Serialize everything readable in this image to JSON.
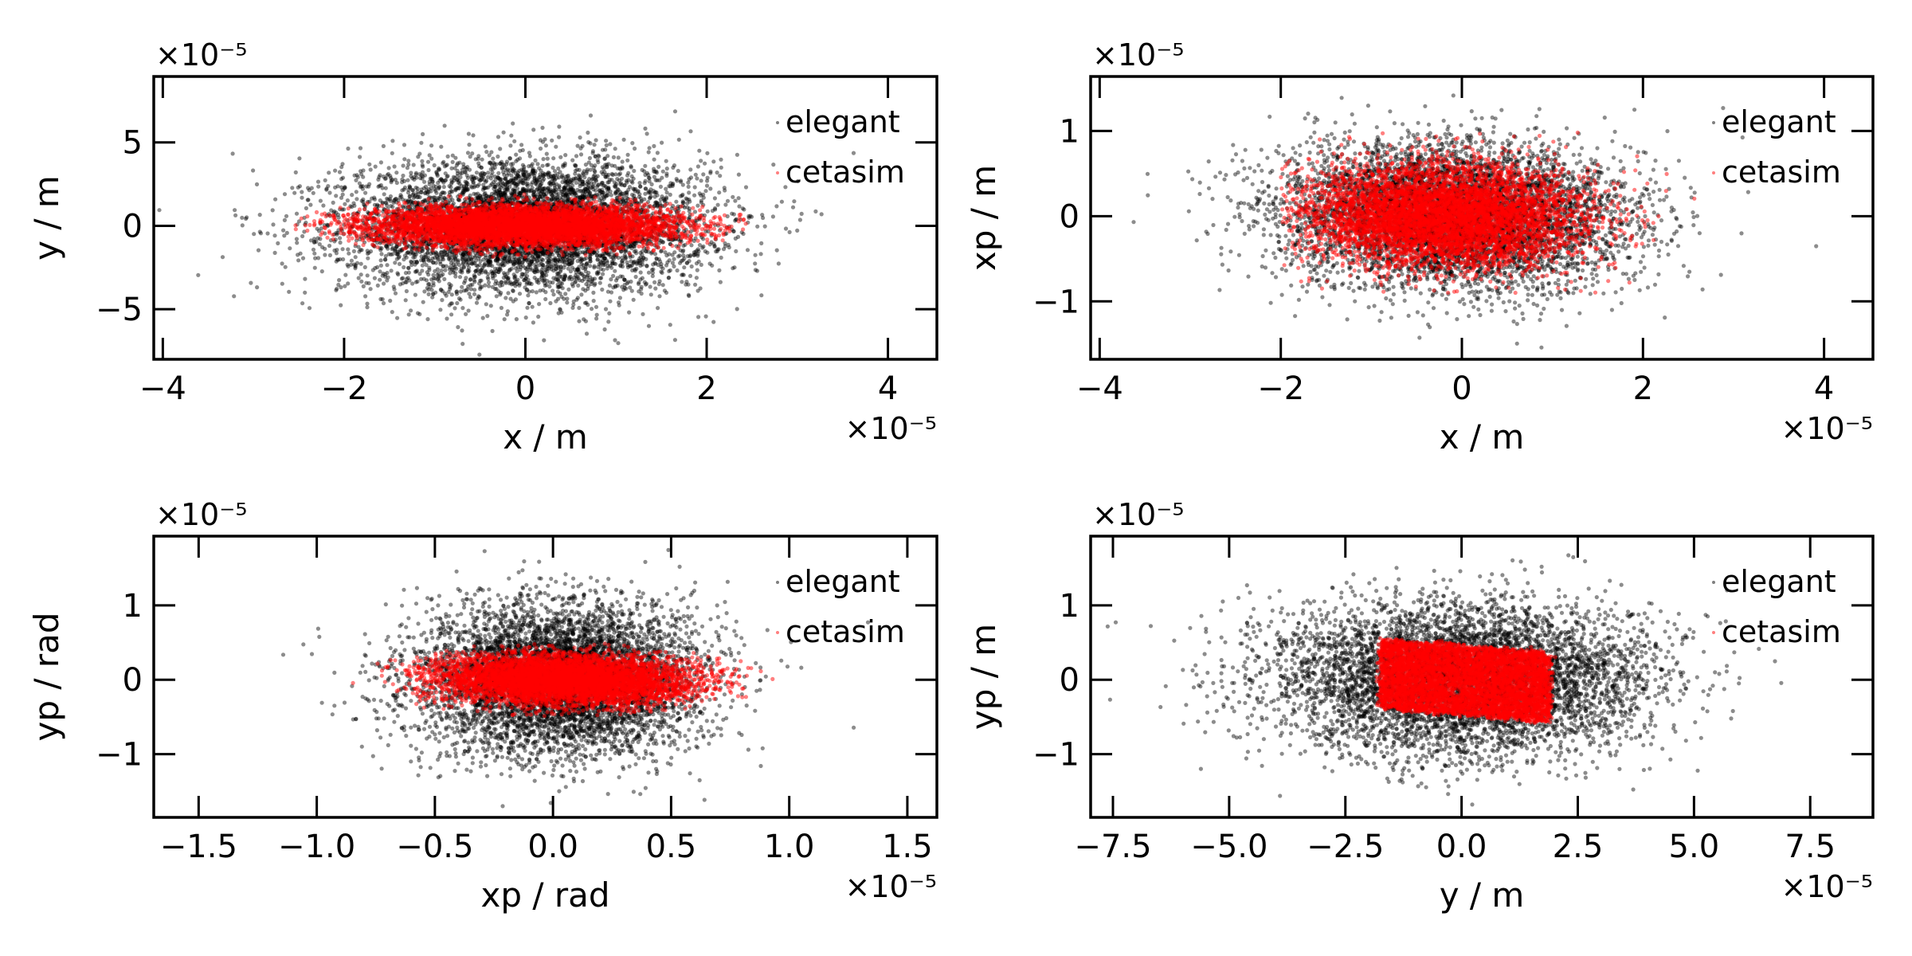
{
  "chart_data": [
    {
      "type": "scatter",
      "title": "",
      "xlabel": "x / m",
      "ylabel": "y / m",
      "x_offset_text": "×10⁻⁵",
      "y_offset_text": "×10⁻⁵",
      "scale": 1e-05,
      "xlim": [
        -4.1,
        4.54
      ],
      "ylim": [
        -8.0,
        8.95
      ],
      "xticks": [
        -4,
        -2,
        0,
        2,
        4
      ],
      "xtick_labels": [
        "−4",
        "−2",
        "0",
        "2",
        "4"
      ],
      "yticks": [
        -5,
        0,
        5
      ],
      "ytick_labels": [
        "−5",
        "0",
        "5"
      ],
      "grid": false,
      "tick_direction": "in",
      "legend": {
        "placement": "top-right",
        "entries": [
          "elegant",
          "cetasim"
        ],
        "frame": false
      },
      "series": [
        {
          "name": "elegant",
          "color": "#000000",
          "alpha": 0.45,
          "distribution": "gaussian",
          "n_points_approx": 6000,
          "mean": [
            0,
            0
          ],
          "sigma": [
            1.0,
            2.0
          ],
          "correlation": 0.0
        },
        {
          "name": "cetasim",
          "color": "#ff0000",
          "alpha": 0.5,
          "distribution": "gaussian-truncated",
          "n_points_approx": 6000,
          "mean": [
            0,
            0
          ],
          "sigma": [
            0.85,
            0.6
          ],
          "correlation": 0.0,
          "extent_x": [
            -2.5,
            2.6
          ],
          "extent_y": [
            -1.9,
            1.9
          ]
        }
      ]
    },
    {
      "type": "scatter",
      "title": "",
      "xlabel": "x / m",
      "ylabel": "xp / m",
      "x_offset_text": "×10⁻⁵",
      "y_offset_text": "×10⁻⁵",
      "scale": 1e-05,
      "xlim": [
        -4.1,
        4.54
      ],
      "ylim": [
        -1.68,
        1.64
      ],
      "xticks": [
        -4,
        -2,
        0,
        2,
        4
      ],
      "xtick_labels": [
        "−4",
        "−2",
        "0",
        "2",
        "4"
      ],
      "yticks": [
        -1,
        0,
        1
      ],
      "ytick_labels": [
        "−1",
        "0",
        "1"
      ],
      "grid": false,
      "tick_direction": "in",
      "legend": {
        "placement": "top-right",
        "entries": [
          "elegant",
          "cetasim"
        ],
        "frame": false
      },
      "series": [
        {
          "name": "elegant",
          "color": "#000000",
          "alpha": 0.45,
          "distribution": "gaussian",
          "n_points_approx": 6000,
          "mean": [
            -0.1,
            0
          ],
          "sigma": [
            0.95,
            0.42
          ],
          "correlation": -0.05
        },
        {
          "name": "cetasim",
          "color": "#ff0000",
          "alpha": 0.5,
          "distribution": "gaussian",
          "n_points_approx": 6000,
          "mean": [
            -0.2,
            0
          ],
          "sigma": [
            0.75,
            0.3
          ],
          "correlation": -0.05,
          "extent_x": [
            -2.0,
            2.8
          ],
          "extent_y": [
            -0.9,
            1.0
          ]
        }
      ]
    },
    {
      "type": "scatter",
      "title": "",
      "xlabel": "xp / rad",
      "ylabel": "yp / rad",
      "x_offset_text": "×10⁻⁵",
      "y_offset_text": "×10⁻⁵",
      "scale": 1e-05,
      "xlim": [
        -1.69,
        1.625
      ],
      "ylim": [
        -1.85,
        1.93
      ],
      "xticks": [
        -1.5,
        -1.0,
        -0.5,
        0.0,
        0.5,
        1.0,
        1.5
      ],
      "xtick_labels": [
        "−1.5",
        "−1.0",
        "−0.5",
        "0.0",
        "0.5",
        "1.0",
        "1.5"
      ],
      "yticks": [
        -1,
        0,
        1
      ],
      "ytick_labels": [
        "−1",
        "0",
        "1"
      ],
      "grid": false,
      "tick_direction": "in",
      "legend": {
        "placement": "top-right",
        "entries": [
          "elegant",
          "cetasim"
        ],
        "frame": false
      },
      "series": [
        {
          "name": "elegant",
          "color": "#000000",
          "alpha": 0.45,
          "distribution": "gaussian",
          "n_points_approx": 6000,
          "mean": [
            0.03,
            0
          ],
          "sigma": [
            0.3,
            0.5
          ],
          "correlation": 0.0
        },
        {
          "name": "cetasim",
          "color": "#ff0000",
          "alpha": 0.5,
          "distribution": "gaussian-truncated",
          "n_points_approx": 6000,
          "mean": [
            0.05,
            0
          ],
          "sigma": [
            0.27,
            0.17
          ],
          "correlation": -0.1,
          "extent_x": [
            -0.85,
            0.95
          ],
          "extent_y": [
            -0.5,
            0.5
          ]
        }
      ]
    },
    {
      "type": "scatter",
      "title": "",
      "xlabel": "y / m",
      "ylabel": "yp / m",
      "x_offset_text": "×10⁻⁵",
      "y_offset_text": "×10⁻⁵",
      "scale": 1e-05,
      "xlim": [
        -7.98,
        8.85
      ],
      "ylim": [
        -1.85,
        1.93
      ],
      "xticks": [
        -7.5,
        -5.0,
        -2.5,
        0.0,
        2.5,
        5.0,
        7.5
      ],
      "xtick_labels": [
        "−7.5",
        "−5.0",
        "−2.5",
        "0.0",
        "2.5",
        "5.0",
        "7.5"
      ],
      "yticks": [
        -1,
        0,
        1
      ],
      "ytick_labels": [
        "−1",
        "0",
        "1"
      ],
      "grid": false,
      "tick_direction": "in",
      "legend": {
        "placement": "top-right",
        "entries": [
          "elegant",
          "cetasim"
        ],
        "frame": false
      },
      "series": [
        {
          "name": "elegant",
          "color": "#000000",
          "alpha": 0.45,
          "distribution": "gaussian",
          "n_points_approx": 6000,
          "mean": [
            0,
            0
          ],
          "sigma": [
            2.0,
            0.5
          ],
          "correlation": 0.0
        },
        {
          "name": "cetasim",
          "color": "#ff0000",
          "alpha": 0.5,
          "distribution": "uniform-rectangle",
          "n_points_approx": 6000,
          "extent_x": [
            -1.75,
            1.9
          ],
          "extent_y": [
            -0.47,
            0.46
          ],
          "tilt": -0.05
        }
      ]
    }
  ]
}
